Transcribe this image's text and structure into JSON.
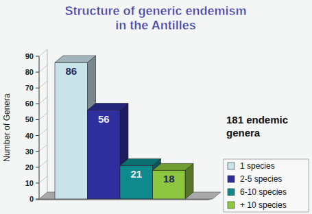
{
  "chart_data": {
    "type": "bar",
    "title": "Structure of generic endemism\nin the Antilles",
    "y_label": "Number of Genera",
    "legend_title": "181 endemic\ngenera",
    "categories": [
      "1 species",
      "2-5 species",
      "6-10 species",
      "+ 10 species"
    ],
    "values": [
      86,
      56,
      21,
      18
    ],
    "colors": [
      "#c9e3ea",
      "#2e2e9e",
      "#10898c",
      "#8dc63f"
    ],
    "ylim": [
      0,
      90
    ],
    "yticks": [
      0,
      10,
      20,
      30,
      40,
      50,
      60,
      70,
      80,
      90
    ],
    "grid": false,
    "legend": "right",
    "data_labels": true,
    "tick_labels": "y"
  }
}
